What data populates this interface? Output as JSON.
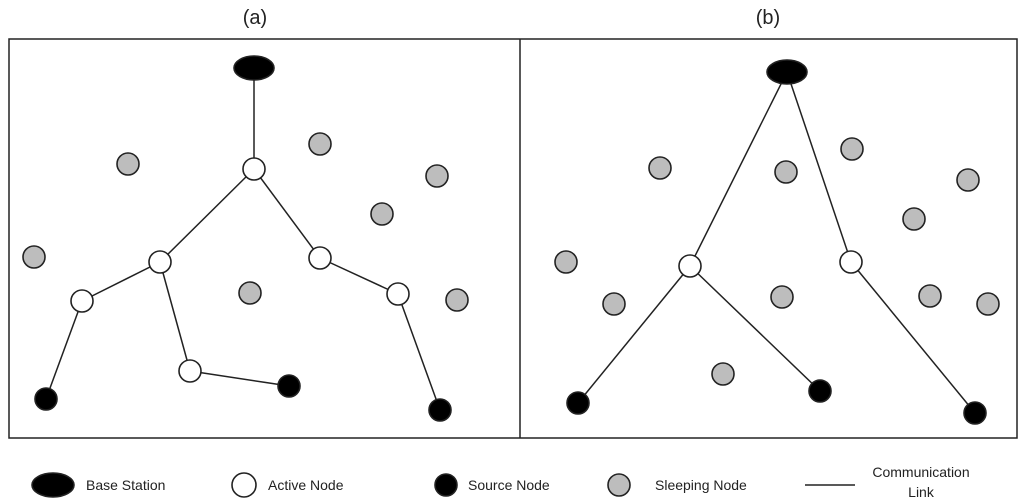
{
  "panels": [
    {
      "label": "(a)",
      "nodes": [
        {
          "id": "bs",
          "type": "base"
        },
        {
          "id": "a1",
          "type": "active"
        },
        {
          "id": "a2",
          "type": "active"
        },
        {
          "id": "a3",
          "type": "active"
        },
        {
          "id": "a4",
          "type": "active"
        },
        {
          "id": "a5",
          "type": "active"
        },
        {
          "id": "a6",
          "type": "active"
        },
        {
          "id": "s1",
          "type": "source"
        },
        {
          "id": "s2",
          "type": "source"
        },
        {
          "id": "s3",
          "type": "source"
        },
        {
          "id": "z1",
          "type": "sleeping"
        },
        {
          "id": "z2",
          "type": "sleeping"
        },
        {
          "id": "z3",
          "type": "sleeping"
        },
        {
          "id": "z4",
          "type": "sleeping"
        },
        {
          "id": "z5",
          "type": "sleeping"
        },
        {
          "id": "z6",
          "type": "sleeping"
        },
        {
          "id": "z7",
          "type": "sleeping"
        },
        {
          "id": "z8",
          "type": "sleeping"
        }
      ],
      "links": [
        [
          "bs",
          "a1"
        ],
        [
          "a1",
          "a2"
        ],
        [
          "a1",
          "a3"
        ],
        [
          "a2",
          "a4"
        ],
        [
          "a2",
          "a5"
        ],
        [
          "a4",
          "s1"
        ],
        [
          "a5",
          "s2"
        ],
        [
          "a3",
          "a6"
        ],
        [
          "a6",
          "s3"
        ]
      ]
    },
    {
      "label": "(b)",
      "nodes": [
        {
          "id": "bs",
          "type": "base"
        },
        {
          "id": "a1",
          "type": "active"
        },
        {
          "id": "a2",
          "type": "active"
        },
        {
          "id": "s1",
          "type": "source"
        },
        {
          "id": "s2",
          "type": "source"
        },
        {
          "id": "s3",
          "type": "source"
        },
        {
          "id": "z1",
          "type": "sleeping"
        },
        {
          "id": "z2",
          "type": "sleeping"
        },
        {
          "id": "z3",
          "type": "sleeping"
        },
        {
          "id": "z4",
          "type": "sleeping"
        },
        {
          "id": "z5",
          "type": "sleeping"
        },
        {
          "id": "z6",
          "type": "sleeping"
        },
        {
          "id": "z7",
          "type": "sleeping"
        },
        {
          "id": "z8",
          "type": "sleeping"
        },
        {
          "id": "z9",
          "type": "sleeping"
        },
        {
          "id": "z10",
          "type": "sleeping"
        },
        {
          "id": "z11",
          "type": "sleeping"
        },
        {
          "id": "z12",
          "type": "sleeping"
        }
      ],
      "links": [
        [
          "bs",
          "a1"
        ],
        [
          "bs",
          "a2"
        ],
        [
          "a1",
          "s1"
        ],
        [
          "a1",
          "s2"
        ],
        [
          "a2",
          "s3"
        ]
      ]
    }
  ],
  "legend": {
    "base_station": "Base Station",
    "active_node": "Active Node",
    "source_node": "Source Node",
    "sleeping_node": "Sleeping Node",
    "link_line1": "Communication",
    "link_line2": "Link"
  },
  "colors": {
    "base": "#000000",
    "active": "#ffffff",
    "source": "#000000",
    "sleeping": "#bdbdbd",
    "stroke": "#222222"
  },
  "icons": {
    "base": "black-ellipse-icon",
    "active": "white-circle-icon",
    "source": "black-circle-icon",
    "sleeping": "gray-circle-icon",
    "link": "line-icon"
  }
}
